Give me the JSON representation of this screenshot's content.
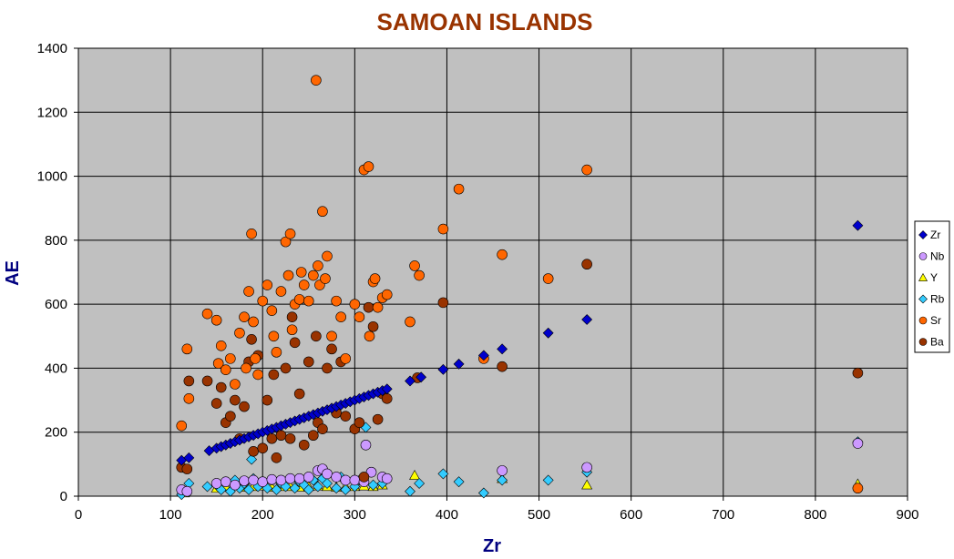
{
  "chart_data": {
    "type": "scatter",
    "title": "SAMOAN ISLANDS",
    "xlabel": "Zr",
    "ylabel": "AE",
    "xlim": [
      0,
      900
    ],
    "ylim": [
      0,
      1400
    ],
    "xticks": [
      0,
      100,
      200,
      300,
      400,
      500,
      600,
      700,
      800,
      900
    ],
    "yticks": [
      0,
      200,
      400,
      600,
      800,
      1000,
      1200,
      1400
    ],
    "grid": true,
    "legend_position": "right",
    "plot_background": "#c0c0c0",
    "series": [
      {
        "name": "Zr",
        "marker": "diamond",
        "color": "#0000cc",
        "x": [
          112,
          120,
          142,
          150,
          155,
          160,
          165,
          170,
          175,
          180,
          185,
          190,
          195,
          200,
          205,
          210,
          215,
          220,
          225,
          230,
          235,
          240,
          245,
          250,
          255,
          260,
          265,
          270,
          275,
          280,
          285,
          290,
          295,
          300,
          305,
          310,
          315,
          320,
          325,
          330,
          335,
          360,
          372,
          396,
          413,
          440,
          460,
          510,
          552,
          846
        ],
        "y": [
          112,
          120,
          142,
          150,
          155,
          160,
          165,
          170,
          175,
          180,
          185,
          190,
          195,
          200,
          205,
          210,
          215,
          220,
          225,
          230,
          235,
          240,
          245,
          250,
          255,
          260,
          265,
          270,
          275,
          280,
          285,
          290,
          295,
          300,
          305,
          310,
          315,
          320,
          325,
          330,
          335,
          360,
          372,
          396,
          413,
          440,
          460,
          510,
          552,
          846
        ]
      },
      {
        "name": "Nb",
        "marker": "circle",
        "color": "#cc99ff",
        "x": [
          112,
          118,
          150,
          160,
          170,
          180,
          190,
          200,
          210,
          220,
          230,
          240,
          250,
          260,
          265,
          270,
          280,
          290,
          300,
          310,
          312,
          318,
          330,
          335,
          460,
          552,
          846
        ],
        "y": [
          20,
          15,
          40,
          45,
          35,
          48,
          50,
          45,
          52,
          50,
          55,
          55,
          60,
          80,
          85,
          70,
          60,
          50,
          50,
          45,
          160,
          75,
          60,
          55,
          80,
          90,
          165
        ]
      },
      {
        "name": "Y",
        "marker": "triangle",
        "color": "#ffff00",
        "x": [
          115,
          150,
          160,
          170,
          180,
          190,
          200,
          210,
          220,
          230,
          240,
          250,
          260,
          270,
          280,
          290,
          300,
          310,
          320,
          330,
          365,
          460,
          552,
          846
        ],
        "y": [
          10,
          25,
          30,
          35,
          28,
          30,
          32,
          28,
          30,
          30,
          28,
          30,
          32,
          30,
          28,
          30,
          30,
          32,
          30,
          35,
          65,
          55,
          35,
          38
        ]
      },
      {
        "name": "Rb",
        "marker": "diamond",
        "color": "#33ccff",
        "x": [
          112,
          120,
          140,
          150,
          155,
          160,
          165,
          170,
          175,
          180,
          185,
          188,
          190,
          195,
          200,
          205,
          210,
          215,
          220,
          225,
          230,
          235,
          240,
          245,
          250,
          255,
          260,
          265,
          270,
          280,
          285,
          290,
          300,
          305,
          310,
          312,
          320,
          330,
          360,
          370,
          396,
          413,
          440,
          460,
          510,
          552,
          846
        ],
        "y": [
          5,
          40,
          30,
          35,
          20,
          45,
          15,
          50,
          25,
          40,
          20,
          115,
          55,
          30,
          45,
          25,
          50,
          20,
          40,
          30,
          55,
          25,
          45,
          35,
          20,
          50,
          30,
          55,
          40,
          25,
          60,
          20,
          30,
          50,
          45,
          215,
          35,
          40,
          15,
          40,
          70,
          45,
          10,
          50,
          50,
          75,
          170
        ]
      },
      {
        "name": "Sr",
        "marker": "circle",
        "color": "#ff6600",
        "x": [
          112,
          118,
          120,
          140,
          150,
          152,
          155,
          160,
          165,
          170,
          175,
          180,
          182,
          185,
          188,
          190,
          192,
          195,
          200,
          205,
          210,
          212,
          215,
          220,
          225,
          228,
          230,
          232,
          235,
          240,
          242,
          245,
          250,
          255,
          258,
          260,
          262,
          265,
          268,
          270,
          275,
          280,
          285,
          290,
          300,
          305,
          310,
          315,
          316,
          320,
          322,
          325,
          330,
          335,
          360,
          365,
          370,
          396,
          413,
          440,
          460,
          510,
          552,
          846
        ],
        "y": [
          220,
          460,
          305,
          570,
          550,
          415,
          470,
          395,
          430,
          350,
          510,
          560,
          400,
          640,
          820,
          545,
          430,
          380,
          610,
          660,
          580,
          500,
          450,
          640,
          795,
          690,
          820,
          520,
          600,
          615,
          700,
          660,
          610,
          690,
          1300,
          720,
          660,
          890,
          680,
          750,
          500,
          610,
          560,
          430,
          600,
          560,
          1020,
          1030,
          500,
          670,
          680,
          590,
          620,
          630,
          545,
          720,
          690,
          835,
          960,
          430,
          755,
          680,
          1020,
          25
        ]
      },
      {
        "name": "Ba",
        "marker": "circle",
        "color": "#993300",
        "x": [
          112,
          118,
          120,
          140,
          150,
          155,
          160,
          165,
          170,
          175,
          180,
          185,
          188,
          190,
          195,
          200,
          205,
          210,
          212,
          215,
          220,
          225,
          230,
          232,
          235,
          240,
          245,
          250,
          255,
          258,
          260,
          265,
          270,
          275,
          280,
          285,
          290,
          300,
          305,
          310,
          315,
          320,
          325,
          330,
          335,
          368,
          396,
          460,
          552,
          846
        ],
        "y": [
          90,
          85,
          360,
          360,
          290,
          340,
          230,
          250,
          300,
          180,
          280,
          420,
          490,
          140,
          440,
          150,
          300,
          180,
          380,
          120,
          190,
          400,
          180,
          560,
          480,
          320,
          160,
          420,
          190,
          500,
          230,
          210,
          400,
          460,
          260,
          420,
          250,
          210,
          230,
          60,
          590,
          530,
          240,
          320,
          305,
          370,
          605,
          405,
          725,
          385
        ]
      }
    ]
  }
}
